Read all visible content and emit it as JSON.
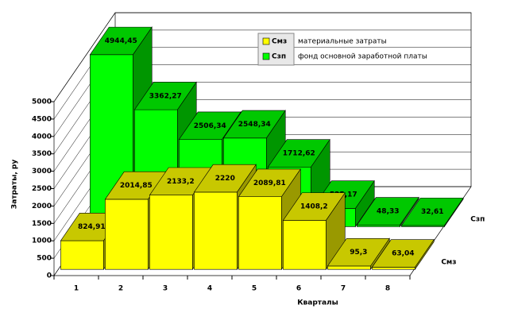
{
  "chart_data": {
    "type": "bar3d",
    "y_label": "Затраты, ру",
    "x_label": "Кварталы",
    "categories": [
      "1",
      "2",
      "3",
      "4",
      "5",
      "6",
      "7",
      "8"
    ],
    "series": [
      {
        "name": "Смз",
        "description": "материальные затраты",
        "color": "#ffff00",
        "top_color": "#c8c800",
        "side_color": "#999900",
        "values": [
          824.91,
          2014.85,
          2133.2,
          2220,
          2089.81,
          1408.2,
          95.3,
          63.04
        ],
        "value_labels": [
          "824,91",
          "2014,85",
          "2133,2",
          "2220",
          "2089,81",
          "1408,2",
          "95,3",
          "63,04"
        ]
      },
      {
        "name": "Сзп",
        "description": "фонд основной заработной платы",
        "color": "#00ff00",
        "top_color": "#00c800",
        "side_color": "#009600",
        "values": [
          4944.45,
          3362.27,
          2506.34,
          2548.34,
          1712.62,
          525.17,
          48.33,
          32.61
        ],
        "value_labels": [
          "4944,45",
          "3362,27",
          "2506,34",
          "2548,34",
          "1712,62",
          "525,17",
          "48,33",
          "32,61"
        ]
      }
    ],
    "ylim": [
      0,
      5000
    ],
    "yticks": [
      0,
      500,
      1000,
      1500,
      2000,
      2500,
      3000,
      3500,
      4000,
      4500,
      5000
    ],
    "grid": true
  }
}
